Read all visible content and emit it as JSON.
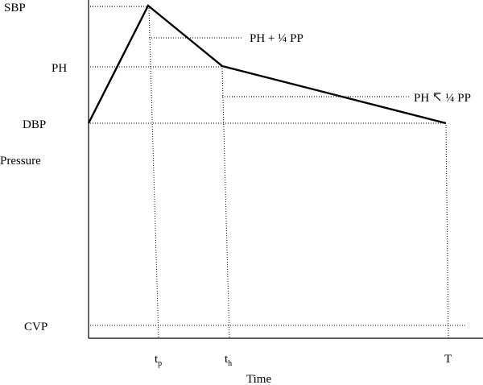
{
  "diagram": {
    "y_axis_label": "Pressure",
    "x_axis_label": "Time",
    "pressure_levels": {
      "sbp": "SBP",
      "ph": "PH",
      "dbp": "DBP",
      "cvp": "CVP"
    },
    "annotations": {
      "ph_plus": "PH + ¼ PP",
      "ph_minus": "PH ↸ ¼ PP"
    },
    "time_marks": {
      "tp_base": "t",
      "tp_sub": "p",
      "th_base": "t",
      "th_sub": "h",
      "T": "T"
    }
  }
}
